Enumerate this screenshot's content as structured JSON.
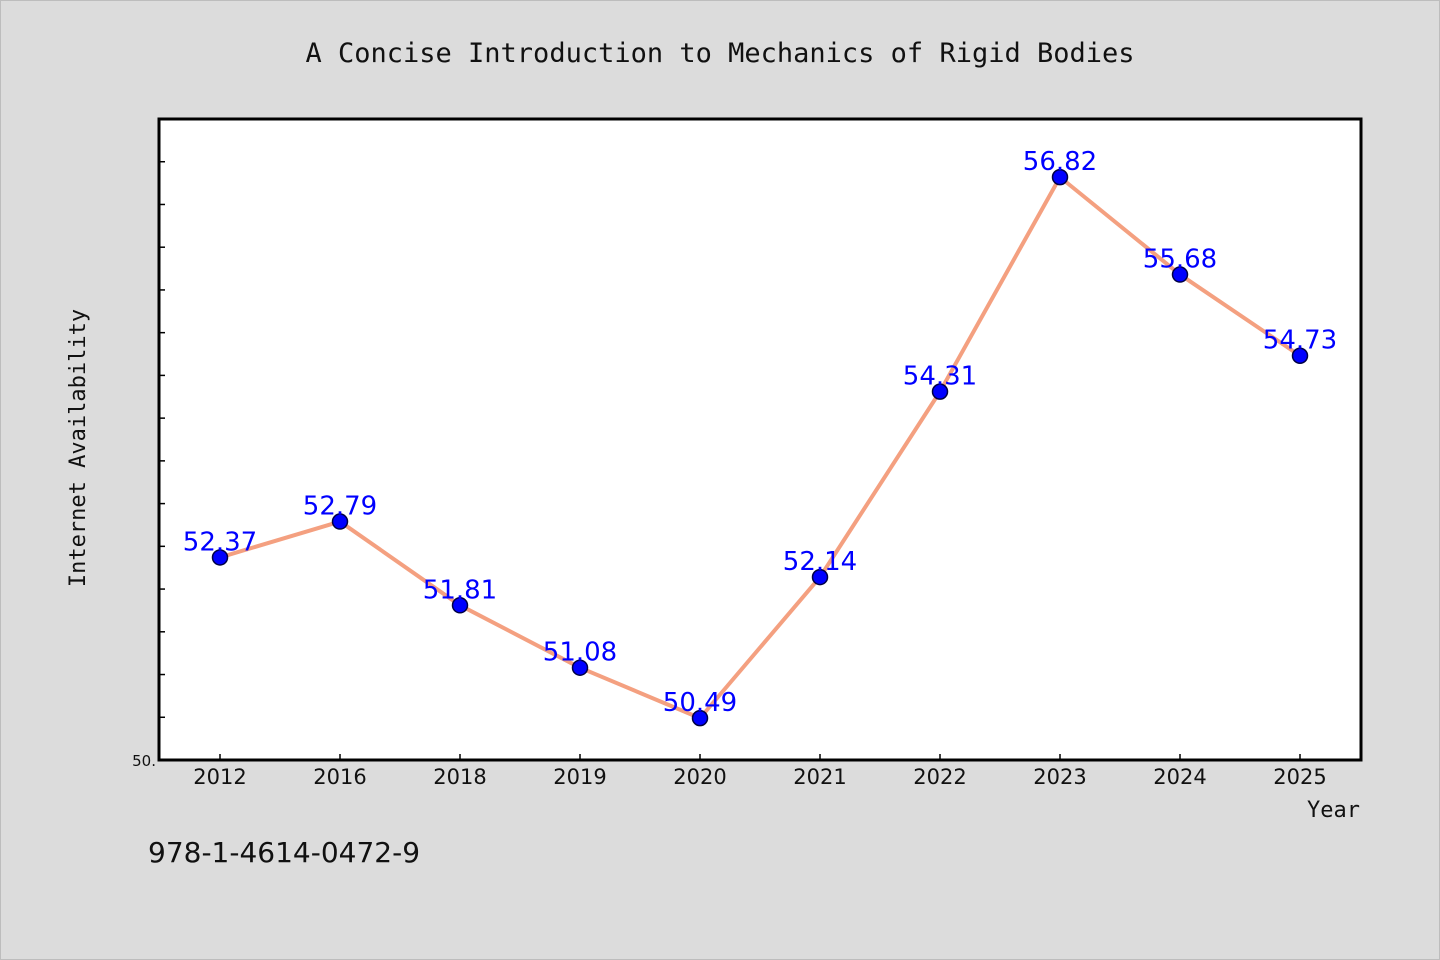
{
  "chart_data": {
    "type": "line",
    "title": "A Concise Introduction to Mechanics of Rigid Bodies",
    "xlabel": "Year",
    "ylabel": "Internet Availability",
    "categories": [
      "2012",
      "2016",
      "2018",
      "2019",
      "2020",
      "2021",
      "2022",
      "2023",
      "2024",
      "2025"
    ],
    "values": [
      52.37,
      52.79,
      51.81,
      51.08,
      50.49,
      52.14,
      54.31,
      56.82,
      55.68,
      54.73
    ],
    "data_labels": [
      "52.37",
      "52.79",
      "51.81",
      "51.08",
      "50.49",
      "52.14",
      "54.31",
      "56.82",
      "55.68",
      "54.73"
    ],
    "ylim": [
      50.0,
      57.5
    ],
    "y_tick_label": "50.",
    "grid": false,
    "line_color": "#f4a080",
    "marker_color": "#0000ff",
    "label_color": "#0000ff"
  },
  "footer": {
    "isbn": "978-1-4614-0472-9"
  }
}
